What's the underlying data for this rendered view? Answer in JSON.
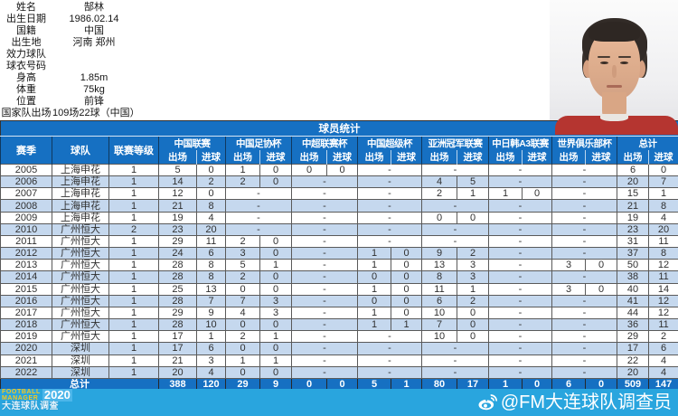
{
  "player_info": {
    "rows": [
      {
        "label": "姓名",
        "value": "郜林"
      },
      {
        "label": "出生日期",
        "value": "1986.02.14"
      },
      {
        "label": "国籍",
        "value": "中国"
      },
      {
        "label": "出生地",
        "value": "河南 郑州"
      },
      {
        "label": "效力球队",
        "value": ""
      },
      {
        "label": "球衣号码",
        "value": ""
      },
      {
        "label": "身高",
        "value": "1.85m"
      },
      {
        "label": "体重",
        "value": "75kg"
      },
      {
        "label": "位置",
        "value": "前锋"
      },
      {
        "label": "国家队出场",
        "value": "109场22球（中国）"
      }
    ]
  },
  "chart_data": {
    "type": "table",
    "title": "球员统计",
    "fixed_columns": [
      "赛季",
      "球队",
      "联赛等级"
    ],
    "column_groups": [
      "中国联赛",
      "中国足协杯",
      "中超联赛杯",
      "中国超级杯",
      "亚洲冠军联赛",
      "中日韩A3联赛",
      "世界俱乐部杯",
      "总计"
    ],
    "sub_columns": [
      "出场",
      "进球"
    ],
    "empty_cell": "-",
    "rows": [
      {
        "season": "2005",
        "team": "上海申花",
        "tier": "1",
        "stats": [
          [
            5,
            0
          ],
          [
            1,
            0
          ],
          [
            0,
            0
          ],
          null,
          null,
          null,
          null,
          [
            6,
            0
          ]
        ]
      },
      {
        "season": "2006",
        "team": "上海申花",
        "tier": "1",
        "stats": [
          [
            14,
            2
          ],
          [
            2,
            0
          ],
          null,
          null,
          [
            4,
            5
          ],
          null,
          null,
          [
            20,
            7
          ]
        ]
      },
      {
        "season": "2007",
        "team": "上海申花",
        "tier": "1",
        "stats": [
          [
            12,
            0
          ],
          null,
          null,
          null,
          [
            2,
            1
          ],
          [
            1,
            0
          ],
          null,
          [
            15,
            1
          ]
        ]
      },
      {
        "season": "2008",
        "team": "上海申花",
        "tier": "1",
        "stats": [
          [
            21,
            8
          ],
          null,
          null,
          null,
          null,
          null,
          null,
          [
            21,
            8
          ]
        ]
      },
      {
        "season": "2009",
        "team": "上海申花",
        "tier": "1",
        "stats": [
          [
            19,
            4
          ],
          null,
          null,
          null,
          [
            0,
            0
          ],
          null,
          null,
          [
            19,
            4
          ]
        ]
      },
      {
        "season": "2010",
        "team": "广州恒大",
        "tier": "2",
        "stats": [
          [
            23,
            20
          ],
          null,
          null,
          null,
          null,
          null,
          null,
          [
            23,
            20
          ]
        ]
      },
      {
        "season": "2011",
        "team": "广州恒大",
        "tier": "1",
        "stats": [
          [
            29,
            11
          ],
          [
            2,
            0
          ],
          null,
          null,
          null,
          null,
          null,
          [
            31,
            11
          ]
        ]
      },
      {
        "season": "2012",
        "team": "广州恒大",
        "tier": "1",
        "stats": [
          [
            24,
            6
          ],
          [
            3,
            0
          ],
          null,
          [
            1,
            0
          ],
          [
            9,
            2
          ],
          null,
          null,
          [
            37,
            8
          ]
        ]
      },
      {
        "season": "2013",
        "team": "广州恒大",
        "tier": "1",
        "stats": [
          [
            28,
            8
          ],
          [
            5,
            1
          ],
          null,
          [
            1,
            0
          ],
          [
            13,
            3
          ],
          null,
          [
            3,
            0
          ],
          [
            50,
            12
          ]
        ]
      },
      {
        "season": "2014",
        "team": "广州恒大",
        "tier": "1",
        "stats": [
          [
            28,
            8
          ],
          [
            2,
            0
          ],
          null,
          [
            0,
            0
          ],
          [
            8,
            3
          ],
          null,
          null,
          [
            38,
            11
          ]
        ]
      },
      {
        "season": "2015",
        "team": "广州恒大",
        "tier": "1",
        "stats": [
          [
            25,
            13
          ],
          [
            0,
            0
          ],
          null,
          [
            1,
            0
          ],
          [
            11,
            1
          ],
          null,
          [
            3,
            0
          ],
          [
            40,
            14
          ]
        ]
      },
      {
        "season": "2016",
        "team": "广州恒大",
        "tier": "1",
        "stats": [
          [
            28,
            7
          ],
          [
            7,
            3
          ],
          null,
          [
            0,
            0
          ],
          [
            6,
            2
          ],
          null,
          null,
          [
            41,
            12
          ]
        ]
      },
      {
        "season": "2017",
        "team": "广州恒大",
        "tier": "1",
        "stats": [
          [
            29,
            9
          ],
          [
            4,
            3
          ],
          null,
          [
            1,
            0
          ],
          [
            10,
            0
          ],
          null,
          null,
          [
            44,
            12
          ]
        ]
      },
      {
        "season": "2018",
        "team": "广州恒大",
        "tier": "1",
        "stats": [
          [
            28,
            10
          ],
          [
            0,
            0
          ],
          null,
          [
            1,
            1
          ],
          [
            7,
            0
          ],
          null,
          null,
          [
            36,
            11
          ]
        ]
      },
      {
        "season": "2019",
        "team": "广州恒大",
        "tier": "1",
        "stats": [
          [
            17,
            1
          ],
          [
            2,
            1
          ],
          null,
          null,
          [
            10,
            0
          ],
          null,
          null,
          [
            29,
            2
          ]
        ]
      },
      {
        "season": "2020",
        "team": "深圳",
        "tier": "1",
        "stats": [
          [
            17,
            6
          ],
          [
            0,
            0
          ],
          null,
          null,
          null,
          null,
          null,
          [
            17,
            6
          ]
        ]
      },
      {
        "season": "2021",
        "team": "深圳",
        "tier": "1",
        "stats": [
          [
            21,
            3
          ],
          [
            1,
            1
          ],
          null,
          null,
          null,
          null,
          null,
          [
            22,
            4
          ]
        ]
      },
      {
        "season": "2022",
        "team": "深圳",
        "tier": "1",
        "stats": [
          [
            20,
            4
          ],
          [
            0,
            0
          ],
          null,
          null,
          null,
          null,
          null,
          [
            20,
            4
          ]
        ]
      }
    ],
    "total": {
      "label": "总计",
      "stats": [
        [
          388,
          120
        ],
        [
          29,
          9
        ],
        [
          0,
          0
        ],
        [
          5,
          1
        ],
        [
          80,
          17
        ],
        [
          1,
          0
        ],
        [
          6,
          0
        ],
        [
          509,
          147
        ]
      ]
    }
  },
  "footer": {
    "brand_line1": "FOOTBALL",
    "brand_line2": "MANAGER",
    "brand_year": "2020",
    "brand_sub": "大连球队调查",
    "watermark": "@FM大连球队调查员",
    "weibo_icon": "weibo-icon"
  },
  "colors": {
    "table_header_blue": "#1670c2",
    "row_alt_blue": "#c5d8ee",
    "footer_blue": "#29a5de",
    "brand_yellow": "#f6c71d",
    "jersey_red": "#b53530"
  }
}
